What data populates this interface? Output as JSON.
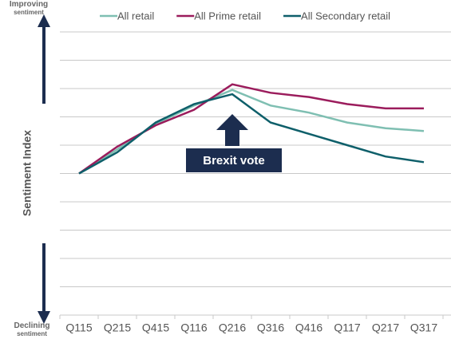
{
  "chart_data": {
    "type": "line",
    "y_label": "Sentiment Index",
    "top_annotation": "Improving sentiment",
    "bottom_annotation": "Declining sentiment",
    "event_annotation": "Brexit vote",
    "event_category": 4,
    "categories": [
      "Q115",
      "Q215",
      "Q415",
      "Q116",
      "Q216",
      "Q316",
      "Q416",
      "Q117",
      "Q217",
      "Q317"
    ],
    "series": [
      {
        "name": "All retail",
        "color": "#7fbfb2",
        "values": [
          0,
          0.85,
          1.75,
          2.4,
          2.95,
          2.4,
          2.15,
          1.8,
          1.6,
          1.5
        ]
      },
      {
        "name": "All Prime retail",
        "color": "#9b1c5c",
        "values": [
          0,
          0.95,
          1.7,
          2.25,
          3.15,
          2.85,
          2.7,
          2.45,
          2.3,
          2.3
        ]
      },
      {
        "name": "All Secondary retail",
        "color": "#0e5f6a",
        "values": [
          0,
          0.75,
          1.8,
          2.45,
          2.8,
          1.8,
          1.4,
          1.0,
          0.6,
          0.4
        ]
      }
    ],
    "ylim": [
      -5,
      5
    ],
    "yticks": [
      -5,
      -4,
      -3,
      -2,
      -1,
      0,
      1,
      2,
      3,
      4,
      5
    ],
    "grid": true
  }
}
